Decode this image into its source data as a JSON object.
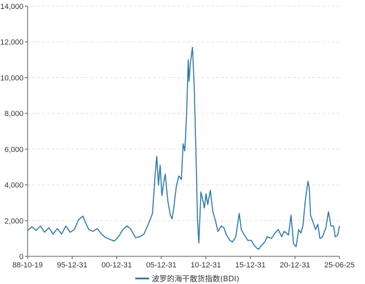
{
  "chart_data": {
    "type": "line",
    "title": "",
    "xlabel": "",
    "ylabel": "",
    "ylim": [
      0,
      14000
    ],
    "yticks": [
      0,
      2000,
      4000,
      6000,
      8000,
      10000,
      12000,
      14000
    ],
    "ytick_labels": [
      "0",
      "2,000",
      "4,000",
      "6,000",
      "8,000",
      "10,000",
      "12,000",
      "14,000"
    ],
    "xlim": [
      1988.8,
      2025.5
    ],
    "xtick_labels": [
      "88-10-19",
      "95-12-31",
      "00-12-31",
      "05-12-31",
      "10-12-31",
      "15-12-31",
      "20-12-31",
      "25-06-25"
    ],
    "grid": "horizontal dashed",
    "legend": "bottom-center",
    "color": "#2f78a3",
    "series": [
      {
        "name": "波罗的海干散货指数(BDI)",
        "x": [
          1988.8,
          1989.3,
          1989.8,
          1990.3,
          1990.8,
          1991.3,
          1991.8,
          1992.3,
          1992.8,
          1993.3,
          1993.8,
          1994.3,
          1994.8,
          1995.3,
          1995.7,
          1996.0,
          1996.5,
          1997.0,
          1997.5,
          1998.0,
          1998.5,
          1999.0,
          1999.5,
          2000.0,
          2000.5,
          2000.9,
          2001.5,
          2002.0,
          2002.5,
          2003.0,
          2003.5,
          2003.8,
          2004.0,
          2004.2,
          2004.4,
          2004.6,
          2004.8,
          2005.0,
          2005.3,
          2005.6,
          2005.8,
          2006.0,
          2006.3,
          2006.6,
          2006.9,
          2007.1,
          2007.3,
          2007.5,
          2007.7,
          2007.8,
          2007.95,
          2008.2,
          2008.4,
          2008.6,
          2008.8,
          2008.95,
          2009.2,
          2009.4,
          2009.6,
          2009.8,
          2010.0,
          2010.3,
          2010.6,
          2010.9,
          2011.2,
          2011.6,
          2011.9,
          2012.2,
          2012.6,
          2012.9,
          2013.3,
          2013.7,
          2013.95,
          2014.3,
          2014.7,
          2015.1,
          2015.5,
          2015.8,
          2016.0,
          2016.3,
          2016.7,
          2017.0,
          2017.5,
          2017.9,
          2018.3,
          2018.7,
          2019.0,
          2019.5,
          2019.8,
          2020.1,
          2020.4,
          2020.7,
          2020.95,
          2021.2,
          2021.5,
          2021.8,
          2021.95,
          2022.1,
          2022.4,
          2022.7,
          2022.95,
          2023.2,
          2023.5,
          2023.9,
          2024.2,
          2024.5,
          2024.8,
          2025.0,
          2025.3,
          2025.5
        ],
        "values": [
          1450,
          1650,
          1450,
          1700,
          1350,
          1600,
          1250,
          1550,
          1250,
          1700,
          1350,
          1500,
          2050,
          2250,
          1800,
          1500,
          1400,
          1550,
          1250,
          1050,
          950,
          850,
          1100,
          1500,
          1700,
          1550,
          1050,
          1100,
          1250,
          1800,
          2400,
          4500,
          5600,
          4000,
          5100,
          3400,
          4100,
          4600,
          3100,
          2300,
          2100,
          2700,
          3900,
          4500,
          4300,
          6300,
          5900,
          7800,
          11000,
          9800,
          10800,
          11700,
          9600,
          6000,
          2000,
          750,
          3600,
          3200,
          2700,
          3500,
          2900,
          3700,
          2500,
          2000,
          1400,
          1700,
          1600,
          1200,
          900,
          800,
          1100,
          2400,
          1500,
          1200,
          900,
          900,
          600,
          450,
          400,
          600,
          800,
          1100,
          1000,
          1300,
          1500,
          1100,
          1400,
          1200,
          2300,
          700,
          550,
          1500,
          1300,
          1700,
          3200,
          4200,
          3800,
          2300,
          1900,
          1500,
          1800,
          1000,
          1100,
          1600,
          2500,
          1700,
          1700,
          1100,
          1200,
          1700
        ]
      }
    ]
  }
}
